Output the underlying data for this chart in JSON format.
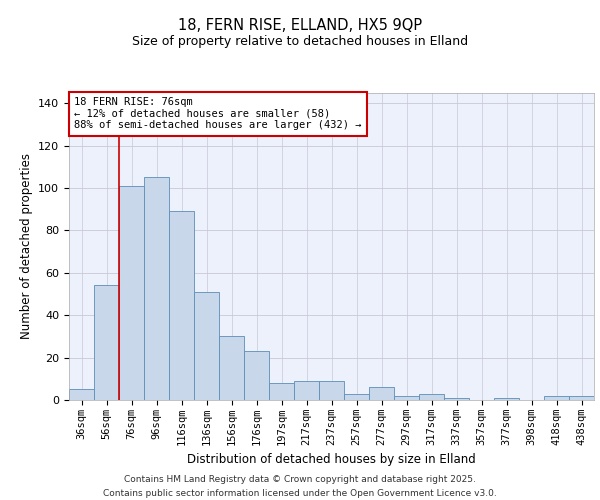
{
  "title_line1": "18, FERN RISE, ELLAND, HX5 9QP",
  "title_line2": "Size of property relative to detached houses in Elland",
  "xlabel": "Distribution of detached houses by size in Elland",
  "ylabel": "Number of detached properties",
  "categories": [
    "36sqm",
    "56sqm",
    "76sqm",
    "96sqm",
    "116sqm",
    "136sqm",
    "156sqm",
    "176sqm",
    "197sqm",
    "217sqm",
    "237sqm",
    "257sqm",
    "277sqm",
    "297sqm",
    "317sqm",
    "337sqm",
    "357sqm",
    "377sqm",
    "398sqm",
    "418sqm",
    "438sqm"
  ],
  "values": [
    5,
    54,
    101,
    105,
    89,
    51,
    30,
    23,
    8,
    9,
    9,
    3,
    6,
    2,
    3,
    1,
    0,
    1,
    0,
    2,
    2
  ],
  "bar_color": "#c8d8ea",
  "bar_edge_color": "#5b8db8",
  "vline_color": "#cc0000",
  "annotation_text": "18 FERN RISE: 76sqm\n← 12% of detached houses are smaller (58)\n88% of semi-detached houses are larger (432) →",
  "ylim": [
    0,
    145
  ],
  "yticks": [
    0,
    20,
    40,
    60,
    80,
    100,
    120,
    140
  ],
  "background_color": "#edf1fb",
  "grid_color": "#c8c8d8",
  "footer_text": "Contains HM Land Registry data © Crown copyright and database right 2025.\nContains public sector information licensed under the Open Government Licence v3.0."
}
